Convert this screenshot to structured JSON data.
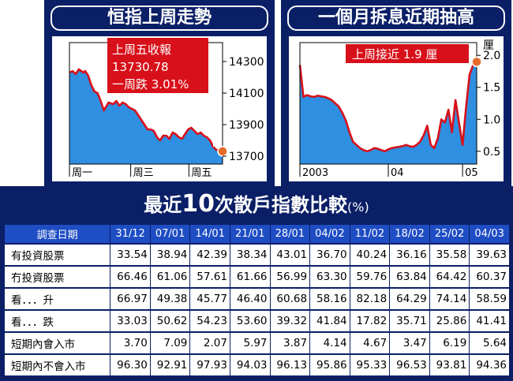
{
  "left_chart": {
    "title": "恒指上周走勢",
    "callout": [
      "上周五收報",
      "13730.78",
      "一周跌 3.01%"
    ],
    "y_ticks": [
      "14300",
      "14100",
      "13900",
      "13700"
    ],
    "x_ticks": [
      "周一",
      "周三",
      "周五"
    ]
  },
  "right_chart": {
    "title": "一個月拆息近期抽高",
    "callout": "上周接近 1.9 厘",
    "unit": "厘",
    "y_ticks": [
      "2.0",
      "1.5",
      "1.0",
      "0.5"
    ],
    "x_ticks": [
      "2003",
      "04",
      "05"
    ]
  },
  "table": {
    "title_prefix": "最近",
    "title_number": "10",
    "title_suffix": "次散戶指數比較",
    "title_unit": "(%)",
    "header_label": "調查日期",
    "dates": [
      "31/12",
      "07/01",
      "14/01",
      "21/01",
      "28/01",
      "04/02",
      "11/02",
      "18/02",
      "25/02",
      "04/03"
    ],
    "rows": [
      {
        "label": "有投資股票",
        "values": [
          "33.54",
          "38.94",
          "42.39",
          "38.34",
          "43.01",
          "36.70",
          "40.24",
          "36.16",
          "35.58",
          "39.63"
        ]
      },
      {
        "label": "冇投資股票",
        "values": [
          "66.46",
          "61.06",
          "57.61",
          "61.66",
          "56.99",
          "63.30",
          "59.76",
          "63.84",
          "64.42",
          "60.37"
        ]
      },
      {
        "label": "看．．．升",
        "values": [
          "66.97",
          "49.38",
          "45.77",
          "46.40",
          "60.68",
          "58.16",
          "82.18",
          "64.29",
          "74.14",
          "58.59"
        ]
      },
      {
        "label": "看．．．跌",
        "values": [
          "33.03",
          "50.62",
          "54.23",
          "53.60",
          "39.32",
          "41.84",
          "17.82",
          "35.71",
          "25.86",
          "41.41"
        ]
      },
      {
        "label": "短期內會入市",
        "values": [
          "3.70",
          "7.09",
          "2.07",
          "5.97",
          "3.87",
          "4.14",
          "4.67",
          "3.47",
          "6.19",
          "5.64"
        ]
      },
      {
        "label": "短期內不會入市",
        "values": [
          "96.30",
          "92.91",
          "97.93",
          "94.03",
          "96.13",
          "95.86",
          "95.33",
          "96.53",
          "93.81",
          "94.36"
        ]
      }
    ]
  },
  "colors": {
    "navy": "#0a1f66",
    "header_blue": "#1e4dc4",
    "chart_fill": "#2f8fe0",
    "line_red": "#d8101a",
    "callout_red": "#d8101a"
  },
  "chart_data": [
    {
      "type": "area",
      "title": "恒指上周走勢",
      "x_ticks": [
        "周一",
        "周三",
        "周五"
      ],
      "ylim": [
        13650,
        14420
      ],
      "y_ticks": [
        14300,
        14100,
        13900,
        13700
      ],
      "series": [
        {
          "x": [
            0,
            0.1,
            0.2,
            0.3,
            0.45,
            0.5,
            0.6,
            0.7,
            0.8,
            0.9,
            1.0,
            1.1,
            1.25,
            1.4,
            1.5,
            1.6,
            1.7,
            1.8,
            1.9,
            2.0,
            2.1,
            2.2,
            2.3,
            2.4,
            2.5,
            2.6,
            2.7,
            2.8,
            2.9,
            3.0,
            3.1,
            3.2,
            3.3,
            3.4,
            3.5,
            3.6,
            3.7,
            3.8,
            3.9,
            4.0,
            4.1,
            4.2,
            4.3,
            4.4,
            4.5,
            4.6,
            4.7,
            4.8,
            4.9
          ],
          "values": [
            14230,
            14240,
            14220,
            14250,
            14230,
            14240,
            14210,
            14150,
            14110,
            14100,
            14050,
            13990,
            14040,
            14030,
            14050,
            14020,
            14040,
            14030,
            14010,
            14000,
            13990,
            13960,
            13930,
            13900,
            13870,
            13870,
            13860,
            13820,
            13800,
            13830,
            13830,
            13810,
            13850,
            13840,
            13820,
            13810,
            13840,
            13870,
            13880,
            13860,
            13840,
            13850,
            13830,
            13820,
            13800,
            13760,
            13740,
            13735,
            13731
          ]
        }
      ]
    },
    {
      "type": "area",
      "title": "一個月拆息近期抽高",
      "x_ticks": [
        "2003",
        "04",
        "05"
      ],
      "ylim": [
        0.3,
        2.2
      ],
      "y_ticks": [
        2.0,
        1.5,
        1.0,
        0.5
      ],
      "series": [
        {
          "x": [
            0,
            2,
            4,
            6,
            8,
            10,
            12,
            14,
            16,
            18,
            20,
            22,
            24,
            26,
            28,
            30,
            32,
            34,
            36,
            38,
            40,
            42,
            44,
            46,
            48,
            50,
            52,
            54,
            56,
            58,
            60,
            62,
            64,
            66,
            68,
            70,
            72,
            74,
            76,
            78,
            80,
            82,
            84,
            86,
            88,
            90,
            92,
            94,
            96,
            98,
            100
          ],
          "values": [
            1.85,
            1.35,
            1.38,
            1.36,
            1.35,
            1.37,
            1.36,
            1.35,
            1.33,
            1.3,
            1.25,
            1.2,
            1.1,
            0.98,
            0.8,
            0.65,
            0.6,
            0.55,
            0.52,
            0.5,
            0.52,
            0.55,
            0.54,
            0.52,
            0.5,
            0.53,
            0.55,
            0.56,
            0.57,
            0.58,
            0.6,
            0.58,
            0.57,
            0.6,
            0.65,
            0.75,
            0.9,
            0.6,
            0.55,
            0.7,
            1.0,
            0.95,
            1.15,
            0.8,
            1.3,
            0.95,
            0.6,
            1.2,
            1.7,
            1.85,
            1.9
          ]
        }
      ]
    }
  ]
}
